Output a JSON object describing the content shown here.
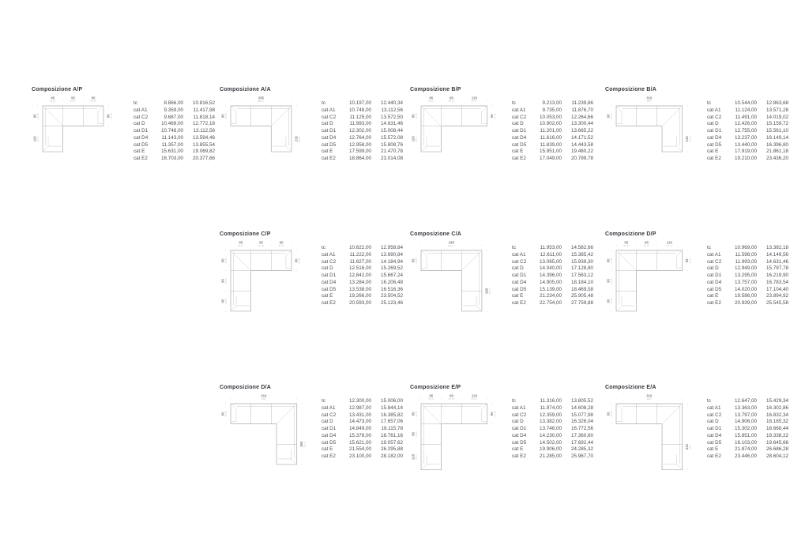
{
  "compositions": [
    {
      "title": "Composizione A/P",
      "drawing": {
        "type": "P",
        "top": [
          {
            "cm": "95",
            "in": "37 ⅜″"
          },
          {
            "cm": "95",
            "in": "37 ⅜″"
          },
          {
            "cm": "95",
            "in": "37 ⅜″"
          }
        ],
        "left": [
          {
            "cm": "95",
            "in": "37 ⅜″"
          },
          {
            "cm": "120",
            "in": "47 ¼″"
          }
        ],
        "right": [
          {
            "cm": "95",
            "in": "37 ⅜″"
          }
        ]
      },
      "rows": [
        {
          "label": "tc",
          "a": "8.866,00",
          "b": "10.816,52"
        },
        {
          "label": "cat A1",
          "a": "9.359,00",
          "b": "11.417,98"
        },
        {
          "label": "cat C2",
          "a": "9.687,00",
          "b": "11.818,14"
        },
        {
          "label": "cat D",
          "a": "10.469,00",
          "b": "12.772,18"
        },
        {
          "label": "cat D1",
          "a": "10.748,00",
          "b": "13.112,56"
        },
        {
          "label": "cat D4",
          "a": "11.143,00",
          "b": "13.594,46"
        },
        {
          "label": "cat D5",
          "a": "11.357,00",
          "b": "13.855,54"
        },
        {
          "label": "cat E",
          "a": "15.631,00",
          "b": "19.069,82"
        },
        {
          "label": "cat E2",
          "a": "16.703,00",
          "b": "20.377,66"
        }
      ]
    },
    {
      "title": "Composizione A/A",
      "drawing": {
        "type": "A",
        "top": [
          {
            "cm": "285",
            "in": "112 ¼″"
          }
        ],
        "left": [
          {
            "cm": "95",
            "in": "37 ⅜″"
          }
        ],
        "right": [
          {
            "cm": "215",
            "in": "84 ⅝″"
          }
        ]
      },
      "rows": [
        {
          "label": "tc",
          "a": "10.197,00",
          "b": "12.440,34"
        },
        {
          "label": "cat A1",
          "a": "10.748,00",
          "b": "13.112,56"
        },
        {
          "label": "cat C2",
          "a": "11.125,00",
          "b": "13.572,50"
        },
        {
          "label": "cat D",
          "a": "11.993,00",
          "b": "14.631,46"
        },
        {
          "label": "cat D1",
          "a": "12.302,00",
          "b": "15.008,44"
        },
        {
          "label": "cat D4",
          "a": "12.764,00",
          "b": "15.572,08"
        },
        {
          "label": "cat D5",
          "a": "12.958,00",
          "b": "15.808,76"
        },
        {
          "label": "cat E",
          "a": "17.599,00",
          "b": "21.470,78"
        },
        {
          "label": "cat E2",
          "a": "18.864,00",
          "b": "23.014,08"
        }
      ]
    },
    {
      "title": "Composizione B/P",
      "drawing": {
        "type": "P",
        "top": [
          {
            "cm": "95",
            "in": "37 ⅜″"
          },
          {
            "cm": "95",
            "in": "37 ⅜″"
          },
          {
            "cm": "120",
            "in": "47 ¼″"
          }
        ],
        "left": [
          {
            "cm": "95",
            "in": "37 ⅜″"
          },
          {
            "cm": "120",
            "in": "47 ¼″"
          }
        ],
        "right": [
          {
            "cm": "95",
            "in": "37 ⅜″"
          }
        ]
      },
      "rows": [
        {
          "label": "tc",
          "a": "9.213,00",
          "b": "11.239,86"
        },
        {
          "label": "cat A1",
          "a": "9.735,00",
          "b": "11.876,70"
        },
        {
          "label": "cat C2",
          "a": "10.053,00",
          "b": "12.264,66"
        },
        {
          "label": "cat D",
          "a": "10.902,00",
          "b": "13.300,44"
        },
        {
          "label": "cat D1",
          "a": "11.201,00",
          "b": "13.665,22"
        },
        {
          "label": "cat D4",
          "a": "11.616,00",
          "b": "14.171,52"
        },
        {
          "label": "cat D5",
          "a": "11.839,00",
          "b": "14.443,58"
        },
        {
          "label": "cat E",
          "a": "15.951,00",
          "b": "19.460,22"
        },
        {
          "label": "cat E2",
          "a": "17.049,00",
          "b": "20.799,78"
        }
      ]
    },
    {
      "title": "Composizione B/A",
      "drawing": {
        "type": "A",
        "top": [
          {
            "cm": "310",
            "in": "122″"
          }
        ],
        "left": [
          {
            "cm": "95",
            "in": "37 ⅜″"
          }
        ],
        "right": [
          {
            "cm": "215",
            "in": "84 ⅝″"
          }
        ]
      },
      "rows": [
        {
          "label": "tc",
          "a": "10.544,00",
          "b": "12.863,68"
        },
        {
          "label": "cat A1",
          "a": "11.124,00",
          "b": "13.571,28"
        },
        {
          "label": "cat C2",
          "a": "11.491,00",
          "b": "14.019,02"
        },
        {
          "label": "cat D",
          "a": "12.426,00",
          "b": "15.159,72"
        },
        {
          "label": "cat D1",
          "a": "12.755,00",
          "b": "15.561,10"
        },
        {
          "label": "cat D4",
          "a": "13.237,00",
          "b": "16.149,14"
        },
        {
          "label": "cat D5",
          "a": "13.440,00",
          "b": "16.396,80"
        },
        {
          "label": "cat E",
          "a": "17.919,00",
          "b": "21.861,18"
        },
        {
          "label": "cat E2",
          "a": "19.210,00",
          "b": "23.436,20"
        }
      ]
    },
    {
      "title": "Composizione C/P",
      "drawing": {
        "type": "P",
        "top": [
          {
            "cm": "95",
            "in": "37 ⅜″"
          },
          {
            "cm": "95",
            "in": "37 ⅜″"
          },
          {
            "cm": "95",
            "in": "37 ⅜″"
          }
        ],
        "left": [
          {
            "cm": "95",
            "in": "37 ⅜″"
          },
          {
            "cm": "95",
            "in": "37 ⅜″"
          },
          {
            "cm": "95",
            "in": "37 ⅜″"
          }
        ],
        "right": [
          {
            "cm": "95",
            "in": "37 ⅜″"
          }
        ]
      },
      "rows": [
        {
          "label": "tc",
          "a": "10.622,00",
          "b": "12.958,84"
        },
        {
          "label": "cat A1",
          "a": "11.222,00",
          "b": "13.690,84"
        },
        {
          "label": "cat C2",
          "a": "11.627,00",
          "b": "14.184,94"
        },
        {
          "label": "cat D",
          "a": "12.516,00",
          "b": "15.269,52"
        },
        {
          "label": "cat D1",
          "a": "12.842,00",
          "b": "15.667,24"
        },
        {
          "label": "cat D4",
          "a": "13.284,00",
          "b": "16.206,48"
        },
        {
          "label": "cat D5",
          "a": "13.538,00",
          "b": "16.516,36"
        },
        {
          "label": "cat E",
          "a": "19.266,00",
          "b": "23.504,52"
        },
        {
          "label": "cat E2",
          "a": "20.593,00",
          "b": "25.123,46"
        }
      ]
    },
    {
      "title": "Composizione C/A",
      "drawing": {
        "type": "A",
        "top": [
          {
            "cm": "285",
            "in": "112 ¼″"
          }
        ],
        "left": [
          {
            "cm": "95",
            "in": "37 ⅜″"
          }
        ],
        "right": [
          {
            "cm": "285",
            "in": "112 ¼″"
          }
        ]
      },
      "rows": [
        {
          "label": "tc",
          "a": "11.953,00",
          "b": "14.582,66"
        },
        {
          "label": "cat A1",
          "a": "12.611,00",
          "b": "15.385,42"
        },
        {
          "label": "cat C2",
          "a": "13.065,00",
          "b": "15.939,30"
        },
        {
          "label": "cat D",
          "a": "14.040,00",
          "b": "17.128,80"
        },
        {
          "label": "cat D1",
          "a": "14.396,00",
          "b": "17.563,12"
        },
        {
          "label": "cat D4",
          "a": "14.905,00",
          "b": "18.184,10"
        },
        {
          "label": "cat D5",
          "a": "15.139,00",
          "b": "18.469,58"
        },
        {
          "label": "cat E",
          "a": "21.234,00",
          "b": "25.905,48"
        },
        {
          "label": "cat E2",
          "a": "22.754,00",
          "b": "27.759,88"
        }
      ]
    },
    {
      "title": "Composizione D/P",
      "drawing": {
        "type": "P",
        "top": [
          {
            "cm": "95",
            "in": "37 ⅜″"
          },
          {
            "cm": "95",
            "in": "37 ⅜″"
          },
          {
            "cm": "120",
            "in": "47 ¼″"
          }
        ],
        "left": [
          {
            "cm": "95",
            "in": "37 ⅜″"
          },
          {
            "cm": "95",
            "in": "37 ⅜″"
          },
          {
            "cm": "95",
            "in": "37 ⅜″"
          }
        ],
        "right": [
          {
            "cm": "95",
            "in": "37 ⅜″"
          }
        ]
      },
      "rows": [
        {
          "label": "tc",
          "a": "10.969,00",
          "b": "13.382,18"
        },
        {
          "label": "cat A1",
          "a": "11.598,00",
          "b": "14.149,56"
        },
        {
          "label": "cat C2",
          "a": "11.993,00",
          "b": "14.631,46"
        },
        {
          "label": "cat D",
          "a": "12.949,00",
          "b": "15.797,78"
        },
        {
          "label": "cat D1",
          "a": "13.295,00",
          "b": "16.219,90"
        },
        {
          "label": "cat D4",
          "a": "13.757,00",
          "b": "16.783,54"
        },
        {
          "label": "cat D5",
          "a": "14.020,00",
          "b": "17.104,40"
        },
        {
          "label": "cat E",
          "a": "19.586,00",
          "b": "23.894,92"
        },
        {
          "label": "cat E2",
          "a": "20.939,00",
          "b": "25.545,58"
        }
      ]
    },
    {
      "title": "Composizione D/A",
      "drawing": {
        "type": "A",
        "top": [
          {
            "cm": "310",
            "in": "122″"
          }
        ],
        "left": [
          {
            "cm": "95",
            "in": "37 ⅜″"
          }
        ],
        "right": [
          {
            "cm": "285",
            "in": "112 ¼″"
          }
        ]
      },
      "rows": [
        {
          "label": "tc",
          "a": "12.300,00",
          "b": "15.006,00"
        },
        {
          "label": "cat A1",
          "a": "12.987,00",
          "b": "15.844,14"
        },
        {
          "label": "cat C2",
          "a": "13.431,00",
          "b": "16.385,82"
        },
        {
          "label": "cat D",
          "a": "14.473,00",
          "b": "17.657,06"
        },
        {
          "label": "cat D1",
          "a": "14.849,00",
          "b": "18.115,78"
        },
        {
          "label": "cat D4",
          "a": "15.378,00",
          "b": "18.761,16"
        },
        {
          "label": "cat D5",
          "a": "15.621,00",
          "b": "19.057,62"
        },
        {
          "label": "cat E",
          "a": "21.554,00",
          "b": "26.295,88"
        },
        {
          "label": "cat E2",
          "a": "23.100,00",
          "b": "28.182,00"
        }
      ]
    },
    {
      "title": "Composizione E/P",
      "drawing": {
        "type": "P",
        "top": [
          {
            "cm": "95",
            "in": "37 ⅜″"
          },
          {
            "cm": "95",
            "in": "37 ⅜″"
          },
          {
            "cm": "120",
            "in": "47 ¼″"
          }
        ],
        "left": [
          {
            "cm": "95",
            "in": "37 ⅜″"
          },
          {
            "cm": "95",
            "in": "37 ⅜″"
          },
          {
            "cm": "120",
            "in": "47 ¼″"
          }
        ],
        "right": [
          {
            "cm": "95",
            "in": "37 ⅜″"
          }
        ]
      },
      "rows": [
        {
          "label": "tc",
          "a": "11.316,00",
          "b": "13.805,52"
        },
        {
          "label": "cat A1",
          "a": "11.974,00",
          "b": "14.608,28"
        },
        {
          "label": "cat C2",
          "a": "12.359,00",
          "b": "15.077,98"
        },
        {
          "label": "cat D",
          "a": "13.382,00",
          "b": "16.326,04"
        },
        {
          "label": "cat D1",
          "a": "13.748,00",
          "b": "16.772,56"
        },
        {
          "label": "cat D4",
          "a": "14.230,00",
          "b": "17.360,60"
        },
        {
          "label": "cat D5",
          "a": "14.502,00",
          "b": "17.692,44"
        },
        {
          "label": "cat E",
          "a": "19.906,00",
          "b": "24.285,32"
        },
        {
          "label": "cat E2",
          "a": "21.285,00",
          "b": "25.967,70"
        }
      ]
    },
    {
      "title": "Composizione E/A",
      "drawing": {
        "type": "A",
        "top": [
          {
            "cm": "310",
            "in": "122″"
          }
        ],
        "left": [
          {
            "cm": "95",
            "in": "37 ⅜″"
          }
        ],
        "right": [
          {
            "cm": "310",
            "in": "122″"
          }
        ]
      },
      "rows": [
        {
          "label": "tc",
          "a": "12.647,00",
          "b": "15.429,34"
        },
        {
          "label": "cat A1",
          "a": "13.363,00",
          "b": "16.302,86"
        },
        {
          "label": "cat C2",
          "a": "13.797,00",
          "b": "16.832,34"
        },
        {
          "label": "cat D",
          "a": "14.906,00",
          "b": "18.185,32"
        },
        {
          "label": "cat D1",
          "a": "15.302,00",
          "b": "18.668,44"
        },
        {
          "label": "cat D4",
          "a": "15.851,00",
          "b": "19.338,22"
        },
        {
          "label": "cat D5",
          "a": "16.103,00",
          "b": "19.645,66"
        },
        {
          "label": "cat E",
          "a": "21.874,00",
          "b": "26.686,28"
        },
        {
          "label": "cat E2",
          "a": "23.446,00",
          "b": "28.604,12"
        }
      ]
    }
  ]
}
